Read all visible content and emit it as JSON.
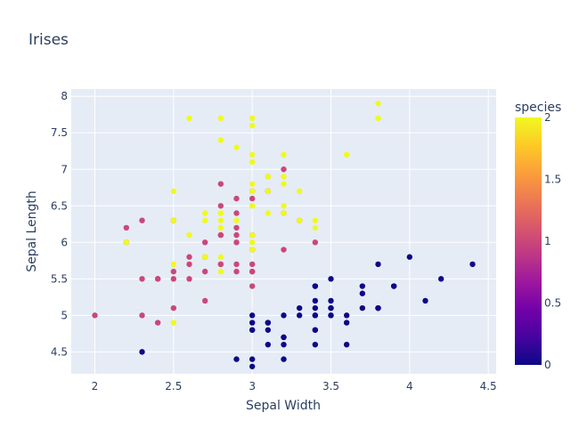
{
  "chart_data": {
    "type": "scatter",
    "title": "Irises",
    "xlabel": "Sepal Width",
    "ylabel": "Sepal Length",
    "xlim": [
      1.85,
      4.55
    ],
    "ylim": [
      4.2,
      8.1
    ],
    "xticks": [
      "2",
      "2.5",
      "3",
      "3.5",
      "4",
      "4.5"
    ],
    "yticks": [
      "4.5",
      "5",
      "5.5",
      "6",
      "6.5",
      "7",
      "7.5",
      "8"
    ],
    "grid": true,
    "plot_background": "#e5ecf6",
    "colorbar": {
      "title": "species",
      "range": [
        0,
        2
      ],
      "ticks": [
        "0",
        "0.5",
        "1",
        "1.5",
        "2"
      ],
      "colors": [
        "#0d0887",
        "#46039f",
        "#7201a8",
        "#9c179e",
        "#bd3786",
        "#d8576b",
        "#ed7953",
        "#fb9f3a",
        "#fdca26",
        "#f0f921"
      ]
    },
    "points": [
      [
        3.5,
        5.1,
        0
      ],
      [
        3.0,
        4.9,
        0
      ],
      [
        3.2,
        4.7,
        0
      ],
      [
        3.1,
        4.6,
        0
      ],
      [
        3.6,
        5.0,
        0
      ],
      [
        3.9,
        5.4,
        0
      ],
      [
        3.4,
        4.6,
        0
      ],
      [
        3.4,
        5.0,
        0
      ],
      [
        2.9,
        4.4,
        0
      ],
      [
        3.1,
        4.9,
        0
      ],
      [
        3.7,
        5.4,
        0
      ],
      [
        3.4,
        4.8,
        0
      ],
      [
        3.0,
        4.8,
        0
      ],
      [
        3.0,
        4.3,
        0
      ],
      [
        4.0,
        5.8,
        0
      ],
      [
        4.4,
        5.7,
        0
      ],
      [
        3.9,
        5.4,
        0
      ],
      [
        3.5,
        5.1,
        0
      ],
      [
        3.8,
        5.7,
        0
      ],
      [
        3.8,
        5.1,
        0
      ],
      [
        3.4,
        5.4,
        0
      ],
      [
        3.7,
        5.1,
        0
      ],
      [
        3.6,
        4.6,
        0
      ],
      [
        3.3,
        5.1,
        0
      ],
      [
        3.4,
        4.8,
        0
      ],
      [
        3.0,
        5.0,
        0
      ],
      [
        3.4,
        5.0,
        0
      ],
      [
        3.5,
        5.2,
        0
      ],
      [
        3.4,
        5.2,
        0
      ],
      [
        3.2,
        4.7,
        0
      ],
      [
        3.1,
        4.8,
        0
      ],
      [
        3.4,
        5.4,
        0
      ],
      [
        4.1,
        5.2,
        0
      ],
      [
        4.2,
        5.5,
        0
      ],
      [
        3.1,
        4.9,
        0
      ],
      [
        3.2,
        5.0,
        0
      ],
      [
        3.5,
        5.5,
        0
      ],
      [
        3.6,
        4.9,
        0
      ],
      [
        3.0,
        4.4,
        0
      ],
      [
        3.4,
        5.1,
        0
      ],
      [
        3.5,
        5.0,
        0
      ],
      [
        2.3,
        4.5,
        0
      ],
      [
        3.2,
        4.4,
        0
      ],
      [
        3.5,
        5.0,
        0
      ],
      [
        3.8,
        5.1,
        0
      ],
      [
        3.0,
        4.8,
        0
      ],
      [
        3.8,
        5.1,
        0
      ],
      [
        3.2,
        4.6,
        0
      ],
      [
        3.7,
        5.3,
        0
      ],
      [
        3.3,
        5.0,
        0
      ],
      [
        3.2,
        7.0,
        1
      ],
      [
        3.2,
        6.4,
        1
      ],
      [
        3.1,
        6.9,
        1
      ],
      [
        2.3,
        5.5,
        1
      ],
      [
        2.8,
        6.5,
        1
      ],
      [
        2.8,
        5.7,
        1
      ],
      [
        3.3,
        6.3,
        1
      ],
      [
        2.4,
        4.9,
        1
      ],
      [
        2.9,
        6.6,
        1
      ],
      [
        2.7,
        5.2,
        1
      ],
      [
        2.0,
        5.0,
        1
      ],
      [
        3.0,
        5.9,
        1
      ],
      [
        2.2,
        6.0,
        1
      ],
      [
        2.9,
        6.1,
        1
      ],
      [
        2.9,
        5.6,
        1
      ],
      [
        3.1,
        6.7,
        1
      ],
      [
        3.0,
        5.6,
        1
      ],
      [
        2.7,
        5.8,
        1
      ],
      [
        2.2,
        6.2,
        1
      ],
      [
        2.5,
        5.6,
        1
      ],
      [
        3.2,
        5.9,
        1
      ],
      [
        2.8,
        6.1,
        1
      ],
      [
        2.5,
        6.3,
        1
      ],
      [
        2.8,
        6.1,
        1
      ],
      [
        2.9,
        6.4,
        1
      ],
      [
        3.0,
        6.6,
        1
      ],
      [
        2.8,
        6.8,
        1
      ],
      [
        3.0,
        6.7,
        1
      ],
      [
        2.9,
        6.0,
        1
      ],
      [
        2.6,
        5.7,
        1
      ],
      [
        2.4,
        5.5,
        1
      ],
      [
        2.4,
        5.5,
        1
      ],
      [
        2.7,
        5.8,
        1
      ],
      [
        2.7,
        6.0,
        1
      ],
      [
        3.0,
        5.4,
        1
      ],
      [
        3.4,
        6.0,
        1
      ],
      [
        3.1,
        6.7,
        1
      ],
      [
        2.3,
        6.3,
        1
      ],
      [
        3.0,
        5.6,
        1
      ],
      [
        2.5,
        5.5,
        1
      ],
      [
        2.6,
        5.5,
        1
      ],
      [
        3.0,
        6.1,
        1
      ],
      [
        2.6,
        5.8,
        1
      ],
      [
        2.3,
        5.0,
        1
      ],
      [
        2.7,
        5.6,
        1
      ],
      [
        3.0,
        5.7,
        1
      ],
      [
        2.9,
        5.7,
        1
      ],
      [
        2.9,
        6.2,
        1
      ],
      [
        2.5,
        5.1,
        1
      ],
      [
        2.8,
        5.7,
        1
      ],
      [
        3.3,
        6.3,
        2
      ],
      [
        2.7,
        5.8,
        2
      ],
      [
        3.0,
        7.1,
        2
      ],
      [
        2.9,
        6.3,
        2
      ],
      [
        3.0,
        6.5,
        2
      ],
      [
        3.0,
        7.6,
        2
      ],
      [
        2.5,
        4.9,
        2
      ],
      [
        2.9,
        7.3,
        2
      ],
      [
        2.5,
        6.7,
        2
      ],
      [
        3.6,
        7.2,
        2
      ],
      [
        3.2,
        6.5,
        2
      ],
      [
        2.7,
        6.4,
        2
      ],
      [
        3.0,
        6.8,
        2
      ],
      [
        2.5,
        5.7,
        2
      ],
      [
        2.8,
        5.8,
        2
      ],
      [
        3.2,
        6.4,
        2
      ],
      [
        3.0,
        6.5,
        2
      ],
      [
        3.8,
        7.7,
        2
      ],
      [
        2.6,
        7.7,
        2
      ],
      [
        2.2,
        6.0,
        2
      ],
      [
        3.2,
        6.9,
        2
      ],
      [
        2.8,
        5.6,
        2
      ],
      [
        2.8,
        7.7,
        2
      ],
      [
        2.7,
        6.3,
        2
      ],
      [
        3.3,
        6.7,
        2
      ],
      [
        3.2,
        7.2,
        2
      ],
      [
        2.8,
        6.2,
        2
      ],
      [
        3.0,
        6.1,
        2
      ],
      [
        2.8,
        6.4,
        2
      ],
      [
        3.0,
        7.2,
        2
      ],
      [
        2.8,
        7.4,
        2
      ],
      [
        3.8,
        7.9,
        2
      ],
      [
        2.8,
        6.4,
        2
      ],
      [
        2.8,
        6.3,
        2
      ],
      [
        2.6,
        6.1,
        2
      ],
      [
        3.0,
        7.7,
        2
      ],
      [
        3.4,
        6.3,
        2
      ],
      [
        3.1,
        6.4,
        2
      ],
      [
        3.0,
        6.0,
        2
      ],
      [
        3.1,
        6.9,
        2
      ],
      [
        3.1,
        6.7,
        2
      ],
      [
        3.1,
        6.9,
        2
      ],
      [
        2.7,
        5.8,
        2
      ],
      [
        3.2,
        6.8,
        2
      ],
      [
        3.3,
        6.7,
        2
      ],
      [
        3.0,
        6.7,
        2
      ],
      [
        2.5,
        6.3,
        2
      ],
      [
        3.0,
        6.5,
        2
      ],
      [
        3.4,
        6.2,
        2
      ],
      [
        3.0,
        5.9,
        2
      ]
    ]
  }
}
